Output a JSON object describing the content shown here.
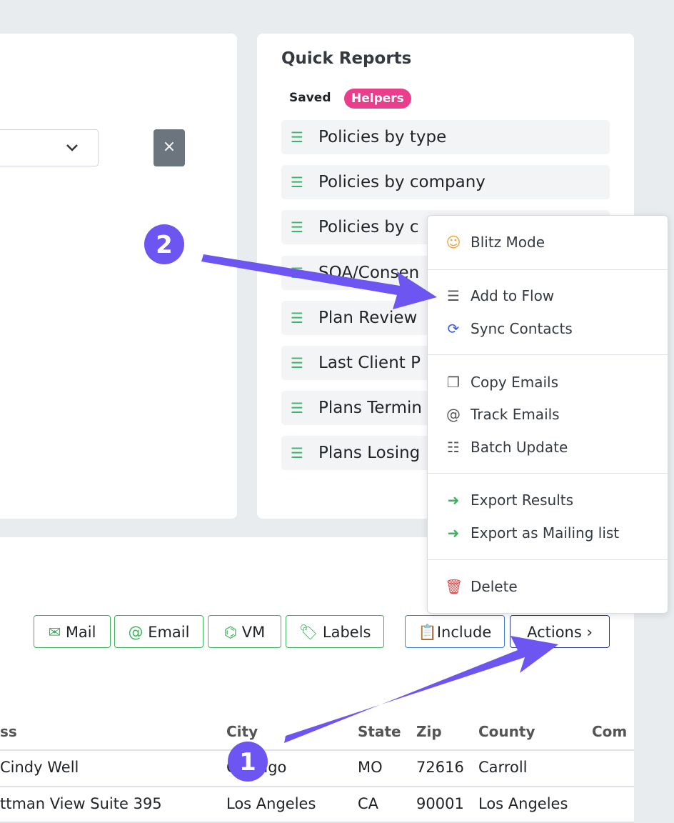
{
  "quick_reports": {
    "title": "Quick Reports",
    "tabs": [
      "Saved",
      "Helpers"
    ],
    "items": [
      "Policies by type",
      "Policies by company",
      "Policies by c",
      "SOA/Consen",
      "Plan Review",
      "Last Client P",
      "Plans Termin",
      "Plans Losing"
    ]
  },
  "actions_menu": {
    "items": [
      "Blitz Mode",
      "Add to Flow",
      "Sync Contacts",
      "Copy Emails",
      "Track Emails",
      "Batch Update",
      "Export Results",
      "Export as Mailing list",
      "Delete"
    ]
  },
  "toolbar": {
    "buttons": [
      "Mail",
      "Email",
      "VM",
      "Labels",
      "Include",
      "Actions"
    ]
  },
  "table": {
    "headers": [
      "ss",
      "City",
      "State",
      "Zip",
      "County",
      "Com"
    ],
    "rows": [
      [
        "Cindy Well",
        "Chicago",
        "MO",
        "72616",
        "Carroll"
      ],
      [
        "ttman View Suite 395",
        "Los Angeles",
        "CA",
        "90001",
        "Los Angeles"
      ]
    ]
  },
  "annotations": [
    "2",
    "1"
  ]
}
